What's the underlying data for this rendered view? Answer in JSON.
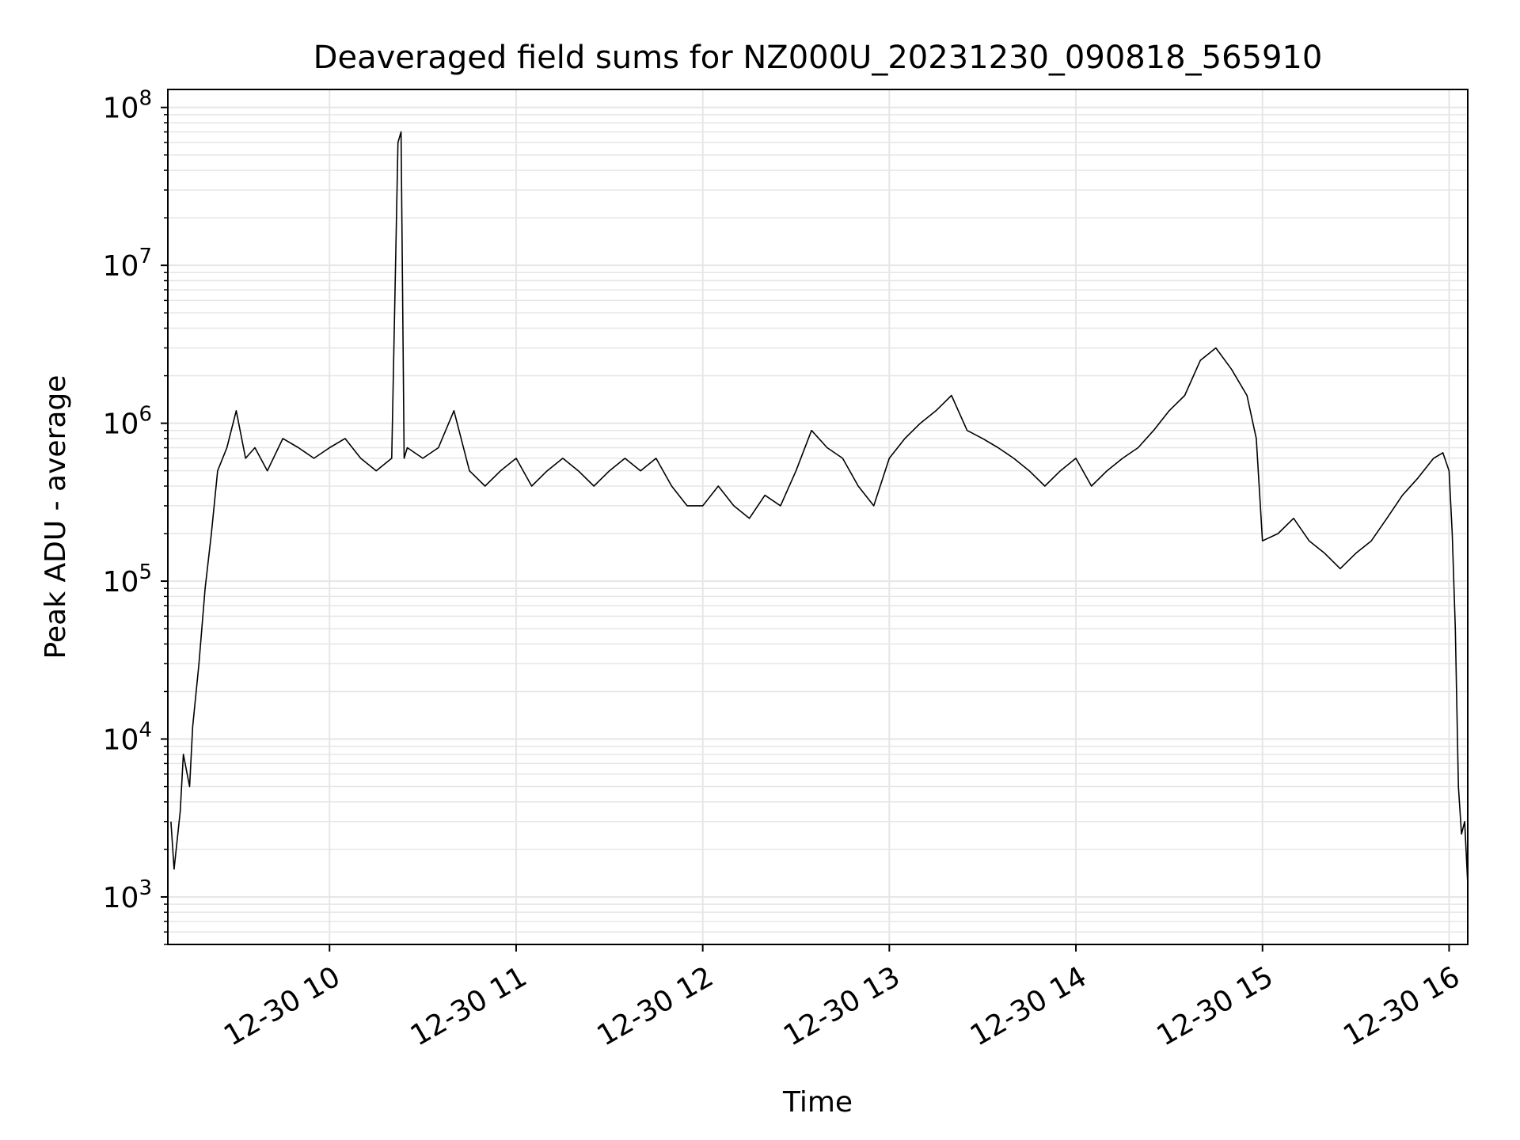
{
  "chart_data": {
    "type": "line",
    "title": "Deaveraged field sums for NZ000U_20231230_090818_565910",
    "xlabel": "Time",
    "ylabel": "Peak ADU - average",
    "yscale": "log",
    "ylim": [
      500,
      130000000
    ],
    "xlim": [
      "2023-12-30 09:08",
      "2023-12-30 16:06"
    ],
    "grid": true,
    "legend": "none",
    "colors": {
      "line": "#000000",
      "grid": "#e6e6e6",
      "axes": "#000000",
      "background": "#ffffff"
    },
    "x_tick_labels": [
      "12-30 10",
      "12-30 11",
      "12-30 12",
      "12-30 13",
      "12-30 14",
      "12-30 15",
      "12-30 16"
    ],
    "x_tick_values": [
      "2023-12-30 10:00",
      "2023-12-30 11:00",
      "2023-12-30 12:00",
      "2023-12-30 13:00",
      "2023-12-30 14:00",
      "2023-12-30 15:00",
      "2023-12-30 16:00"
    ],
    "y_tick_labels": [
      {
        "value": 1000,
        "base": "10",
        "exp": "3"
      },
      {
        "value": 10000,
        "base": "10",
        "exp": "4"
      },
      {
        "value": 100000,
        "base": "10",
        "exp": "5"
      },
      {
        "value": 1000000,
        "base": "10",
        "exp": "6"
      },
      {
        "value": 10000000,
        "base": "10",
        "exp": "7"
      },
      {
        "value": 100000000,
        "base": "10",
        "exp": "8"
      }
    ],
    "series": [
      {
        "x": [
          "2023-12-30 09:09",
          "2023-12-30 09:10",
          "2023-12-30 09:12",
          "2023-12-30 09:13",
          "2023-12-30 09:15",
          "2023-12-30 09:16",
          "2023-12-30 09:18",
          "2023-12-30 09:20",
          "2023-12-30 09:22",
          "2023-12-30 09:24",
          "2023-12-30 09:27",
          "2023-12-30 09:30",
          "2023-12-30 09:33",
          "2023-12-30 09:36",
          "2023-12-30 09:40",
          "2023-12-30 09:45",
          "2023-12-30 09:50",
          "2023-12-30 09:55",
          "2023-12-30 10:00",
          "2023-12-30 10:05",
          "2023-12-30 10:10",
          "2023-12-30 10:15",
          "2023-12-30 10:20",
          "2023-12-30 10:22",
          "2023-12-30 10:23",
          "2023-12-30 10:24",
          "2023-12-30 10:25",
          "2023-12-30 10:30",
          "2023-12-30 10:35",
          "2023-12-30 10:40",
          "2023-12-30 10:45",
          "2023-12-30 10:50",
          "2023-12-30 10:55",
          "2023-12-30 11:00",
          "2023-12-30 11:05",
          "2023-12-30 11:10",
          "2023-12-30 11:15",
          "2023-12-30 11:20",
          "2023-12-30 11:25",
          "2023-12-30 11:30",
          "2023-12-30 11:35",
          "2023-12-30 11:40",
          "2023-12-30 11:45",
          "2023-12-30 11:50",
          "2023-12-30 11:55",
          "2023-12-30 12:00",
          "2023-12-30 12:05",
          "2023-12-30 12:10",
          "2023-12-30 12:15",
          "2023-12-30 12:20",
          "2023-12-30 12:25",
          "2023-12-30 12:30",
          "2023-12-30 12:35",
          "2023-12-30 12:40",
          "2023-12-30 12:45",
          "2023-12-30 12:50",
          "2023-12-30 12:55",
          "2023-12-30 13:00",
          "2023-12-30 13:05",
          "2023-12-30 13:10",
          "2023-12-30 13:15",
          "2023-12-30 13:20",
          "2023-12-30 13:25",
          "2023-12-30 13:30",
          "2023-12-30 13:35",
          "2023-12-30 13:40",
          "2023-12-30 13:45",
          "2023-12-30 13:50",
          "2023-12-30 13:55",
          "2023-12-30 14:00",
          "2023-12-30 14:05",
          "2023-12-30 14:10",
          "2023-12-30 14:15",
          "2023-12-30 14:20",
          "2023-12-30 14:25",
          "2023-12-30 14:30",
          "2023-12-30 14:35",
          "2023-12-30 14:40",
          "2023-12-30 14:45",
          "2023-12-30 14:50",
          "2023-12-30 14:55",
          "2023-12-30 14:58",
          "2023-12-30 15:00",
          "2023-12-30 15:05",
          "2023-12-30 15:10",
          "2023-12-30 15:15",
          "2023-12-30 15:20",
          "2023-12-30 15:25",
          "2023-12-30 15:30",
          "2023-12-30 15:35",
          "2023-12-30 15:40",
          "2023-12-30 15:45",
          "2023-12-30 15:50",
          "2023-12-30 15:55",
          "2023-12-30 15:58",
          "2023-12-30 16:00",
          "2023-12-30 16:01",
          "2023-12-30 16:02",
          "2023-12-30 16:03",
          "2023-12-30 16:04",
          "2023-12-30 16:05",
          "2023-12-30 16:06"
        ],
        "y": [
          3000,
          1500,
          3500,
          8000,
          5000,
          12000,
          30000,
          90000,
          200000,
          500000,
          700000,
          1200000,
          600000,
          700000,
          500000,
          800000,
          700000,
          600000,
          700000,
          800000,
          600000,
          500000,
          600000,
          60000000,
          70000000,
          600000,
          700000,
          600000,
          700000,
          1200000,
          500000,
          400000,
          500000,
          600000,
          400000,
          500000,
          600000,
          500000,
          400000,
          500000,
          600000,
          500000,
          600000,
          400000,
          300000,
          300000,
          400000,
          300000,
          250000,
          350000,
          300000,
          500000,
          900000,
          700000,
          600000,
          400000,
          300000,
          600000,
          800000,
          1000000,
          1200000,
          1500000,
          900000,
          800000,
          700000,
          600000,
          500000,
          400000,
          500000,
          600000,
          400000,
          500000,
          600000,
          700000,
          900000,
          1200000,
          1500000,
          2500000,
          3000000,
          2200000,
          1500000,
          800000,
          180000,
          200000,
          250000,
          180000,
          150000,
          120000,
          150000,
          180000,
          250000,
          350000,
          450000,
          600000,
          650000,
          500000,
          200000,
          50000,
          5000,
          2500,
          3000,
          1200
        ]
      }
    ]
  }
}
